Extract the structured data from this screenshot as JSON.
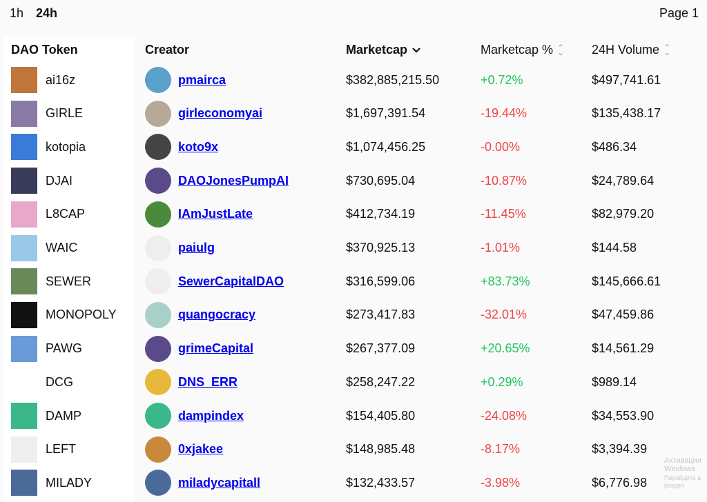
{
  "tabs": [
    {
      "label": "1h",
      "active": false
    },
    {
      "label": "24h",
      "active": true
    }
  ],
  "page_label": "Page 1",
  "headers": {
    "token": "DAO Token",
    "creator": "Creator",
    "marketcap": "Marketcap",
    "marketcap_pct": "Marketcap %",
    "volume": "24H Volume"
  },
  "colors": {
    "positive": "#22c55e",
    "negative": "#ef4444",
    "link": "#0000ee"
  },
  "rows": [
    {
      "token": "ai16z",
      "creator": "pmairca",
      "marketcap": "$382,885,215.50",
      "pct": "+0.72%",
      "volume": "$497,741.61",
      "tcolor": "#c0763a",
      "ccolor": "#5aa0c8"
    },
    {
      "token": "GIRLE",
      "creator": "girleconomyai",
      "marketcap": "$1,697,391.54",
      "pct": "-19.44%",
      "volume": "$135,438.17",
      "tcolor": "#8a7aa8",
      "ccolor": "#b8a898"
    },
    {
      "token": "kotopia",
      "creator": "koto9x",
      "marketcap": "$1,074,456.25",
      "pct": "-0.00%",
      "volume": "$486.34",
      "tcolor": "#3a7ad8",
      "ccolor": "#444"
    },
    {
      "token": "DJAI",
      "creator": "DAOJonesPumpAI",
      "marketcap": "$730,695.04",
      "pct": "-10.87%",
      "volume": "$24,789.64",
      "tcolor": "#3a3a5a",
      "ccolor": "#5a4a8a"
    },
    {
      "token": "L8CAP",
      "creator": "IAmJustLate",
      "marketcap": "$412,734.19",
      "pct": "-11.45%",
      "volume": "$82,979.20",
      "tcolor": "#e8a8c8",
      "ccolor": "#4a8a3a"
    },
    {
      "token": "WAIC",
      "creator": "paiulg",
      "marketcap": "$370,925.13",
      "pct": "-1.01%",
      "volume": "$144.58",
      "tcolor": "#9ac8e8",
      "ccolor": "#eee"
    },
    {
      "token": "SEWER",
      "creator": "SewerCapitalDAO",
      "marketcap": "$316,599.06",
      "pct": "+83.73%",
      "volume": "$145,666.61",
      "tcolor": "#6a8a5a",
      "ccolor": "#eee"
    },
    {
      "token": "MONOPOLY",
      "creator": "quangocracy",
      "marketcap": "$273,417.83",
      "pct": "-32.01%",
      "volume": "$47,459.86",
      "tcolor": "#111",
      "ccolor": "#a8d0c8"
    },
    {
      "token": "PAWG",
      "creator": "grimeCapital",
      "marketcap": "$267,377.09",
      "pct": "+20.65%",
      "volume": "$14,561.29",
      "tcolor": "#6a9ad8",
      "ccolor": "#5a4a8a"
    },
    {
      "token": "DCG",
      "creator": "DNS_ERR",
      "marketcap": "$258,247.22",
      "pct": "+0.29%",
      "volume": "$989.14",
      "tcolor": "#fff",
      "ccolor": "#e8b83a"
    },
    {
      "token": "DAMP",
      "creator": "dampindex",
      "marketcap": "$154,405.80",
      "pct": "-24.08%",
      "volume": "$34,553.90",
      "tcolor": "#3ab88a",
      "ccolor": "#3ab88a"
    },
    {
      "token": "LEFT",
      "creator": "0xjakee",
      "marketcap": "$148,985.48",
      "pct": "-8.17%",
      "volume": "$3,394.39",
      "tcolor": "#eee",
      "ccolor": "#c88a3a"
    },
    {
      "token": "MILADY",
      "creator": "miladycapitall",
      "marketcap": "$132,433.57",
      "pct": "-3.98%",
      "volume": "$6,776.98",
      "tcolor": "#4a6a9a",
      "ccolor": "#4a6a9a"
    }
  ],
  "watermark": {
    "line1": "Активация Windows",
    "line2": "Перейдите в раздел"
  }
}
